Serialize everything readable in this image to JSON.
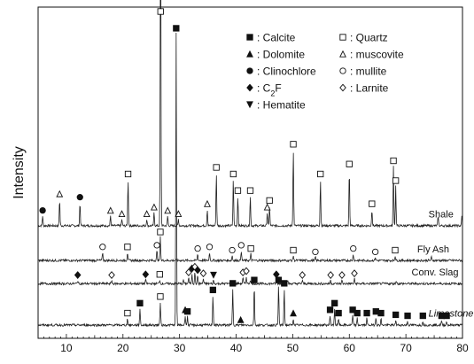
{
  "chart_data": {
    "type": "line",
    "title": "",
    "xlabel": "",
    "ylabel": "Intensity",
    "xlim": [
      5,
      80
    ],
    "x_ticks": [
      10,
      20,
      30,
      40,
      50,
      60,
      70,
      80
    ],
    "y_ticks_shown": false,
    "grid": false,
    "legend_placement": "top-right",
    "legend": [
      {
        "marker": "filled-square",
        "label": ": Calcite"
      },
      {
        "marker": "filled-triangle",
        "label": ": Dolomite"
      },
      {
        "marker": "filled-circle",
        "label": ": Clinochlore"
      },
      {
        "marker": "filled-diamond",
        "label": ": C",
        "sub": "2",
        "after": "F"
      },
      {
        "marker": "filled-down-triangle",
        "label": ": Hematite"
      },
      {
        "marker": "open-square",
        "label": ": Quartz"
      },
      {
        "marker": "open-triangle",
        "label": ": muscovite"
      },
      {
        "marker": "open-circle",
        "label": ": mullite"
      },
      {
        "marker": "open-diamond",
        "label": ": Larnite"
      }
    ],
    "series": [
      {
        "name": "Shale",
        "label_x": 74,
        "baseline": 0.34,
        "peaks": [
          {
            "x": 5.8,
            "h": 0.03
          },
          {
            "x": 8.8,
            "h": 0.08
          },
          {
            "x": 12.4,
            "h": 0.07
          },
          {
            "x": 17.8,
            "h": 0.03
          },
          {
            "x": 19.8,
            "h": 0.02
          },
          {
            "x": 20.9,
            "h": 0.14
          },
          {
            "x": 24.2,
            "h": 0.02
          },
          {
            "x": 25.5,
            "h": 0.04
          },
          {
            "x": 26.65,
            "h": 1.0
          },
          {
            "x": 27.9,
            "h": 0.03
          },
          {
            "x": 29.8,
            "h": 0.02
          },
          {
            "x": 34.9,
            "h": 0.05
          },
          {
            "x": 36.5,
            "h": 0.16
          },
          {
            "x": 39.5,
            "h": 0.14
          },
          {
            "x": 40.3,
            "h": 0.09
          },
          {
            "x": 42.5,
            "h": 0.09
          },
          {
            "x": 45.5,
            "h": 0.04
          },
          {
            "x": 45.9,
            "h": 0.06
          },
          {
            "x": 50.1,
            "h": 0.23
          },
          {
            "x": 54.9,
            "h": 0.14
          },
          {
            "x": 60.0,
            "h": 0.17
          },
          {
            "x": 64.0,
            "h": 0.05
          },
          {
            "x": 67.8,
            "h": 0.18
          },
          {
            "x": 68.2,
            "h": 0.12
          },
          {
            "x": 75.7,
            "h": 0.03
          },
          {
            "x": 79.9,
            "h": 0.03
          }
        ]
      },
      {
        "name": "Fly Ash",
        "label_x": 72,
        "baseline": 0.235,
        "peaks": [
          {
            "x": 16.4,
            "h": 0.025
          },
          {
            "x": 20.8,
            "h": 0.025
          },
          {
            "x": 26.0,
            "h": 0.03
          },
          {
            "x": 26.6,
            "h": 0.07
          },
          {
            "x": 33.2,
            "h": 0.02
          },
          {
            "x": 35.3,
            "h": 0.025
          },
          {
            "x": 39.3,
            "h": 0.015
          },
          {
            "x": 40.9,
            "h": 0.03
          },
          {
            "x": 42.6,
            "h": 0.02
          },
          {
            "x": 50.1,
            "h": 0.015
          },
          {
            "x": 54.0,
            "h": 0.01
          },
          {
            "x": 60.7,
            "h": 0.02
          },
          {
            "x": 64.6,
            "h": 0.01
          },
          {
            "x": 68.1,
            "h": 0.015
          },
          {
            "x": 74.5,
            "h": 0.01
          }
        ]
      },
      {
        "name": "Conv. Slag",
        "label_x": 71,
        "baseline": 0.165,
        "peaks": [
          {
            "x": 12.0,
            "h": 0.01
          },
          {
            "x": 18.0,
            "h": 0.01
          },
          {
            "x": 24.0,
            "h": 0.012
          },
          {
            "x": 26.5,
            "h": 0.012
          },
          {
            "x": 30.7,
            "h": 0.012
          },
          {
            "x": 31.6,
            "h": 0.018
          },
          {
            "x": 32.2,
            "h": 0.03
          },
          {
            "x": 32.7,
            "h": 0.035
          },
          {
            "x": 33.2,
            "h": 0.025
          },
          {
            "x": 34.2,
            "h": 0.015
          },
          {
            "x": 36.0,
            "h": 0.01
          },
          {
            "x": 41.2,
            "h": 0.018
          },
          {
            "x": 41.8,
            "h": 0.022
          },
          {
            "x": 42.5,
            "h": 0.012
          },
          {
            "x": 47.1,
            "h": 0.012
          },
          {
            "x": 49.1,
            "h": 0.01
          },
          {
            "x": 51.7,
            "h": 0.01
          },
          {
            "x": 56.7,
            "h": 0.01
          },
          {
            "x": 58.7,
            "h": 0.01
          },
          {
            "x": 60.9,
            "h": 0.015
          },
          {
            "x": 68.3,
            "h": 0.01
          }
        ]
      },
      {
        "name": "Limestone",
        "label_x": 74,
        "label_italic": true,
        "baseline": 0.04,
        "peaks": [
          {
            "x": 20.8,
            "h": 0.02
          },
          {
            "x": 23.0,
            "h": 0.05
          },
          {
            "x": 26.6,
            "h": 0.07
          },
          {
            "x": 29.4,
            "h": 0.88
          },
          {
            "x": 31.0,
            "h": 0.03
          },
          {
            "x": 31.4,
            "h": 0.025
          },
          {
            "x": 35.9,
            "h": 0.09
          },
          {
            "x": 39.4,
            "h": 0.11
          },
          {
            "x": 43.2,
            "h": 0.12
          },
          {
            "x": 47.5,
            "h": 0.12
          },
          {
            "x": 48.5,
            "h": 0.11
          },
          {
            "x": 50.1,
            "h": 0.02
          },
          {
            "x": 56.6,
            "h": 0.03
          },
          {
            "x": 57.4,
            "h": 0.05
          },
          {
            "x": 58.1,
            "h": 0.02
          },
          {
            "x": 60.6,
            "h": 0.03
          },
          {
            "x": 61.4,
            "h": 0.02
          },
          {
            "x": 63.1,
            "h": 0.02
          },
          {
            "x": 64.7,
            "h": 0.025
          },
          {
            "x": 65.6,
            "h": 0.02
          },
          {
            "x": 68.2,
            "h": 0.015
          },
          {
            "x": 70.3,
            "h": 0.012
          },
          {
            "x": 73.0,
            "h": 0.012
          },
          {
            "x": 76.3,
            "h": 0.012
          },
          {
            "x": 77.2,
            "h": 0.012
          }
        ]
      }
    ],
    "phase_markers": [
      {
        "series": "Shale",
        "x": 5.8,
        "symbol": "filled-circle"
      },
      {
        "series": "Shale",
        "x": 8.8,
        "symbol": "open-triangle"
      },
      {
        "series": "Shale",
        "x": 12.4,
        "symbol": "filled-circle"
      },
      {
        "series": "Shale",
        "x": 17.8,
        "symbol": "open-triangle"
      },
      {
        "series": "Shale",
        "x": 19.8,
        "symbol": "open-triangle"
      },
      {
        "series": "Shale",
        "x": 20.9,
        "symbol": "open-square"
      },
      {
        "series": "Shale",
        "x": 24.2,
        "symbol": "open-triangle"
      },
      {
        "series": "Shale",
        "x": 25.5,
        "symbol": "open-triangle"
      },
      {
        "series": "Shale",
        "x": 26.65,
        "symbol": "open-square"
      },
      {
        "series": "Shale",
        "x": 27.9,
        "symbol": "open-triangle"
      },
      {
        "series": "Shale",
        "x": 29.8,
        "symbol": "open-triangle"
      },
      {
        "series": "Shale",
        "x": 34.9,
        "symbol": "open-triangle"
      },
      {
        "series": "Shale",
        "x": 36.5,
        "symbol": "open-square"
      },
      {
        "series": "Shale",
        "x": 39.5,
        "symbol": "open-square"
      },
      {
        "series": "Shale",
        "x": 40.3,
        "symbol": "open-square"
      },
      {
        "series": "Shale",
        "x": 42.5,
        "symbol": "open-square"
      },
      {
        "series": "Shale",
        "x": 45.5,
        "symbol": "open-triangle"
      },
      {
        "series": "Shale",
        "x": 45.9,
        "symbol": "open-square"
      },
      {
        "series": "Shale",
        "x": 50.1,
        "symbol": "open-square"
      },
      {
        "series": "Shale",
        "x": 54.9,
        "symbol": "open-square"
      },
      {
        "series": "Shale",
        "x": 60.0,
        "symbol": "open-square"
      },
      {
        "series": "Shale",
        "x": 64.0,
        "symbol": "open-square"
      },
      {
        "series": "Shale",
        "x": 67.8,
        "symbol": "open-square"
      },
      {
        "series": "Shale",
        "x": 68.2,
        "symbol": "open-square"
      },
      {
        "series": "Fly Ash",
        "x": 16.4,
        "symbol": "open-circle"
      },
      {
        "series": "Fly Ash",
        "x": 20.8,
        "symbol": "open-square"
      },
      {
        "series": "Fly Ash",
        "x": 26.0,
        "symbol": "open-circle"
      },
      {
        "series": "Fly Ash",
        "x": 26.6,
        "symbol": "open-square"
      },
      {
        "series": "Fly Ash",
        "x": 33.2,
        "symbol": "open-circle"
      },
      {
        "series": "Fly Ash",
        "x": 35.3,
        "symbol": "open-circle"
      },
      {
        "series": "Fly Ash",
        "x": 39.3,
        "symbol": "open-circle"
      },
      {
        "series": "Fly Ash",
        "x": 40.9,
        "symbol": "open-circle"
      },
      {
        "series": "Fly Ash",
        "x": 42.6,
        "symbol": "open-square"
      },
      {
        "series": "Fly Ash",
        "x": 50.1,
        "symbol": "open-square"
      },
      {
        "series": "Fly Ash",
        "x": 54.0,
        "symbol": "open-circle"
      },
      {
        "series": "Fly Ash",
        "x": 60.7,
        "symbol": "open-circle"
      },
      {
        "series": "Fly Ash",
        "x": 64.6,
        "symbol": "open-circle"
      },
      {
        "series": "Fly Ash",
        "x": 68.1,
        "symbol": "open-square"
      },
      {
        "series": "Conv. Slag",
        "x": 12.0,
        "symbol": "filled-diamond"
      },
      {
        "series": "Conv. Slag",
        "x": 18.0,
        "symbol": "open-diamond"
      },
      {
        "series": "Conv. Slag",
        "x": 24.0,
        "symbol": "filled-diamond"
      },
      {
        "series": "Conv. Slag",
        "x": 26.5,
        "symbol": "open-square"
      },
      {
        "series": "Conv. Slag",
        "x": 31.6,
        "symbol": "open-diamond"
      },
      {
        "series": "Conv. Slag",
        "x": 32.2,
        "symbol": "filled-diamond"
      },
      {
        "series": "Conv. Slag",
        "x": 32.7,
        "symbol": "open-diamond"
      },
      {
        "series": "Conv. Slag",
        "x": 33.2,
        "symbol": "filled-diamond"
      },
      {
        "series": "Conv. Slag",
        "x": 34.2,
        "symbol": "open-diamond"
      },
      {
        "series": "Conv. Slag",
        "x": 36.0,
        "symbol": "filled-down-triangle"
      },
      {
        "series": "Conv. Slag",
        "x": 41.2,
        "symbol": "open-diamond"
      },
      {
        "series": "Conv. Slag",
        "x": 41.8,
        "symbol": "open-diamond"
      },
      {
        "series": "Conv. Slag",
        "x": 47.1,
        "symbol": "filled-diamond"
      },
      {
        "series": "Conv. Slag",
        "x": 51.7,
        "symbol": "open-diamond"
      },
      {
        "series": "Conv. Slag",
        "x": 56.7,
        "symbol": "open-diamond"
      },
      {
        "series": "Conv. Slag",
        "x": 58.7,
        "symbol": "open-diamond"
      },
      {
        "series": "Conv. Slag",
        "x": 60.9,
        "symbol": "open-diamond"
      },
      {
        "series": "Limestone",
        "x": 20.8,
        "symbol": "open-square"
      },
      {
        "series": "Limestone",
        "x": 23.0,
        "symbol": "filled-square"
      },
      {
        "series": "Limestone",
        "x": 26.6,
        "symbol": "open-square"
      },
      {
        "series": "Limestone",
        "x": 29.4,
        "symbol": "filled-square"
      },
      {
        "series": "Limestone",
        "x": 31.0,
        "symbol": "filled-triangle"
      },
      {
        "series": "Limestone",
        "x": 31.4,
        "symbol": "filled-square"
      },
      {
        "series": "Limestone",
        "x": 35.9,
        "symbol": "filled-square"
      },
      {
        "series": "Limestone",
        "x": 39.4,
        "symbol": "filled-square"
      },
      {
        "series": "Limestone",
        "x": 40.8,
        "symbol": "filled-triangle"
      },
      {
        "series": "Limestone",
        "x": 43.2,
        "symbol": "filled-square"
      },
      {
        "series": "Limestone",
        "x": 47.5,
        "symbol": "filled-square"
      },
      {
        "series": "Limestone",
        "x": 48.5,
        "symbol": "filled-square"
      },
      {
        "series": "Limestone",
        "x": 50.1,
        "symbol": "filled-triangle"
      },
      {
        "series": "Limestone",
        "x": 56.6,
        "symbol": "filled-square"
      },
      {
        "series": "Limestone",
        "x": 57.4,
        "symbol": "filled-square"
      },
      {
        "series": "Limestone",
        "x": 58.1,
        "symbol": "filled-square"
      },
      {
        "series": "Limestone",
        "x": 60.6,
        "symbol": "filled-square"
      },
      {
        "series": "Limestone",
        "x": 61.4,
        "symbol": "filled-square"
      },
      {
        "series": "Limestone",
        "x": 63.1,
        "symbol": "filled-square"
      },
      {
        "series": "Limestone",
        "x": 64.7,
        "symbol": "filled-square"
      },
      {
        "series": "Limestone",
        "x": 65.6,
        "symbol": "filled-square"
      },
      {
        "series": "Limestone",
        "x": 68.2,
        "symbol": "filled-square"
      },
      {
        "series": "Limestone",
        "x": 70.3,
        "symbol": "filled-square"
      },
      {
        "series": "Limestone",
        "x": 73.0,
        "symbol": "filled-square"
      },
      {
        "series": "Limestone",
        "x": 76.3,
        "symbol": "filled-square"
      },
      {
        "series": "Limestone",
        "x": 77.2,
        "symbol": "filled-square"
      }
    ]
  }
}
